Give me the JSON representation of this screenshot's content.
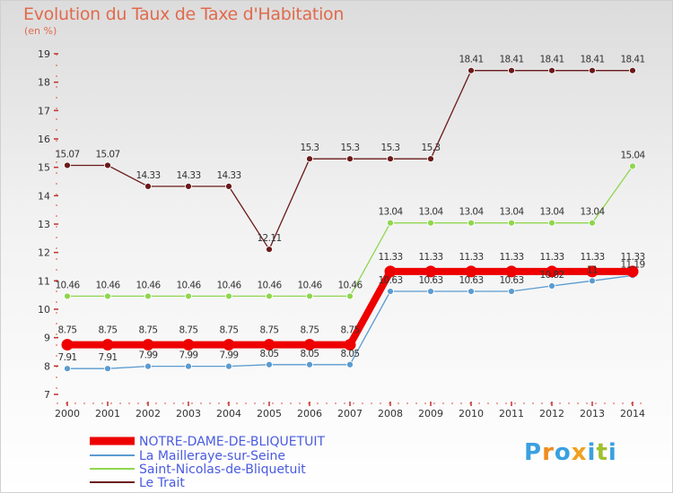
{
  "title": "Evolution du Taux de Taxe d'Habitation",
  "unit": "(en %)",
  "logo": {
    "letters": [
      "P",
      "r",
      "o",
      "x",
      "i",
      "t",
      "i"
    ],
    "colors": [
      "#3aa0e0",
      "#f08c20",
      "#3aa0e0",
      "#f0a020",
      "#3aa0e0",
      "#a0c030",
      "#3aa0e0"
    ]
  },
  "chart_data": {
    "type": "line",
    "title": "Evolution du Taux de Taxe d'Habitation",
    "ylabel": "(en %)",
    "xlabel": "",
    "ylim": [
      7,
      19
    ],
    "yticks": [
      7,
      8,
      9,
      10,
      11,
      12,
      13,
      14,
      15,
      16,
      17,
      18,
      19
    ],
    "x": [
      "2000",
      "2001",
      "2002",
      "2003",
      "2004",
      "2005",
      "2006",
      "2007",
      "2008",
      "2009",
      "2010",
      "2011",
      "2012",
      "2013",
      "2014"
    ],
    "series": [
      {
        "name": "Le Trait",
        "color": "#6b1a1a",
        "values": [
          15.07,
          15.07,
          14.33,
          14.33,
          14.33,
          12.11,
          15.3,
          15.3,
          15.3,
          15.3,
          18.41,
          18.41,
          18.41,
          18.41,
          18.41
        ],
        "labels": [
          "15.07",
          "15.07",
          "14.33",
          "14.33",
          "14.33",
          "12.11",
          "15.3",
          "15.3",
          "15.3",
          "15.3",
          "18.41",
          "18.41",
          "18.41",
          "18.41",
          "18.41"
        ]
      },
      {
        "name": "Saint-Nicolas-de-Bliquetuit",
        "color": "#8fd64f",
        "values": [
          10.46,
          10.46,
          10.46,
          10.46,
          10.46,
          10.46,
          10.46,
          10.46,
          13.04,
          13.04,
          13.04,
          13.04,
          13.04,
          13.04,
          15.04
        ],
        "labels": [
          "10.46",
          "10.46",
          "10.46",
          "10.46",
          "10.46",
          "10.46",
          "10.46",
          "10.46",
          "13.04",
          "13.04",
          "13.04",
          "13.04",
          "13.04",
          "13.04",
          "15.04"
        ]
      },
      {
        "name": "La Mailleraye-sur-Seine",
        "color": "#5b9bd0",
        "values": [
          7.91,
          7.91,
          7.99,
          7.99,
          7.99,
          8.05,
          8.05,
          8.05,
          10.63,
          10.63,
          10.63,
          10.63,
          10.82,
          11,
          11.19
        ],
        "labels": [
          "7.91",
          "7.91",
          "7.99",
          "7.99",
          "7.99",
          "8.05",
          "8.05",
          "8.05",
          "10.63",
          "10.63",
          "10.63",
          "10.63",
          "10.82",
          "11",
          "11.19"
        ]
      },
      {
        "name": "NOTRE-DAME-DE-BLIQUETUIT",
        "color": "#ee0000",
        "values": [
          8.75,
          8.75,
          8.75,
          8.75,
          8.75,
          8.75,
          8.75,
          8.75,
          11.33,
          11.33,
          11.33,
          11.33,
          11.33,
          11.33,
          11.33
        ],
        "labels": [
          "8.75",
          "8.75",
          "8.75",
          "8.75",
          "8.75",
          "8.75",
          "8.75",
          "8.75",
          "11.33",
          "11.33",
          "11.33",
          "11.33",
          "11.33",
          "11.33",
          "11.33"
        ]
      }
    ],
    "legend": [
      "NOTRE-DAME-DE-BLIQUETUIT",
      "La Mailleraye-sur-Seine",
      "Saint-Nicolas-de-Bliquetuit",
      "Le Trait"
    ],
    "grid": false,
    "legend_position": "bottom-left"
  }
}
